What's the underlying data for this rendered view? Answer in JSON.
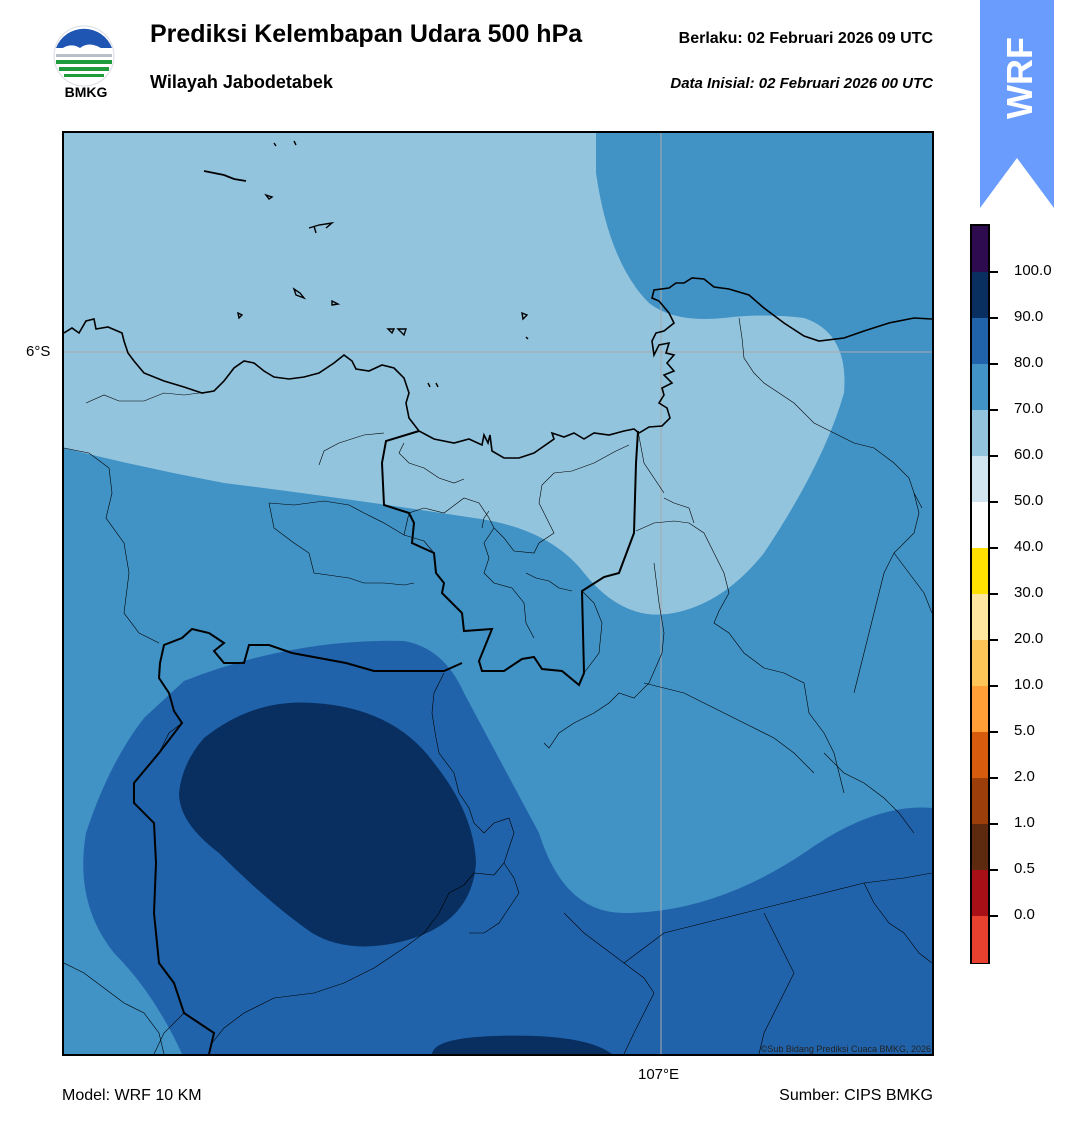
{
  "header": {
    "title": "Prediksi Kelembapan Udara 500 hPa",
    "region": "Wilayah Jabodetabek",
    "valid": "Berlaku:  02 Februari 2026 09 UTC",
    "init": "Data Inisial:  02 Februari 2026 00 UTC"
  },
  "logo": {
    "text": "BMKG",
    "colors": {
      "blue": "#1f56b3",
      "green": "#1e9b3a",
      "gray": "#b9bec7"
    }
  },
  "map": {
    "lat_label": "6°S",
    "lon_label": "107°E",
    "credit": "©Sub Bidang Prediksi Cuaca BMKG, 2026",
    "colors": {
      "c60_70": "#93c4de",
      "c70_80": "#4192c5",
      "c80_90": "#2163ab",
      "c90_100": "#082f60",
      "gridline": "#aaaaaa",
      "coast": "#000000"
    }
  },
  "footer": {
    "model": "Model: WRF 10 KM",
    "source": "Sumber: CIPS BMKG"
  },
  "badge": {
    "text": "WRF",
    "color": "#6a9cfd"
  },
  "colorbar": {
    "labels": [
      "100.0",
      "90.0",
      "80.0",
      "70.0",
      "60.0",
      "50.0",
      "40.0",
      "30.0",
      "20.0",
      "10.0",
      "5.0",
      "2.0",
      "1.0",
      "0.5",
      "0.0"
    ],
    "colors": [
      "#2e0b4e",
      "#082f60",
      "#2163ab",
      "#4192c5",
      "#93c4de",
      "#d1e5f0",
      "#ffffff",
      "#ffe000",
      "#ffe7a0",
      "#ffc657",
      "#ff9f35",
      "#d75b0c",
      "#9c3e0a",
      "#5d2a10",
      "#a80f16",
      "#e8412f"
    ]
  }
}
